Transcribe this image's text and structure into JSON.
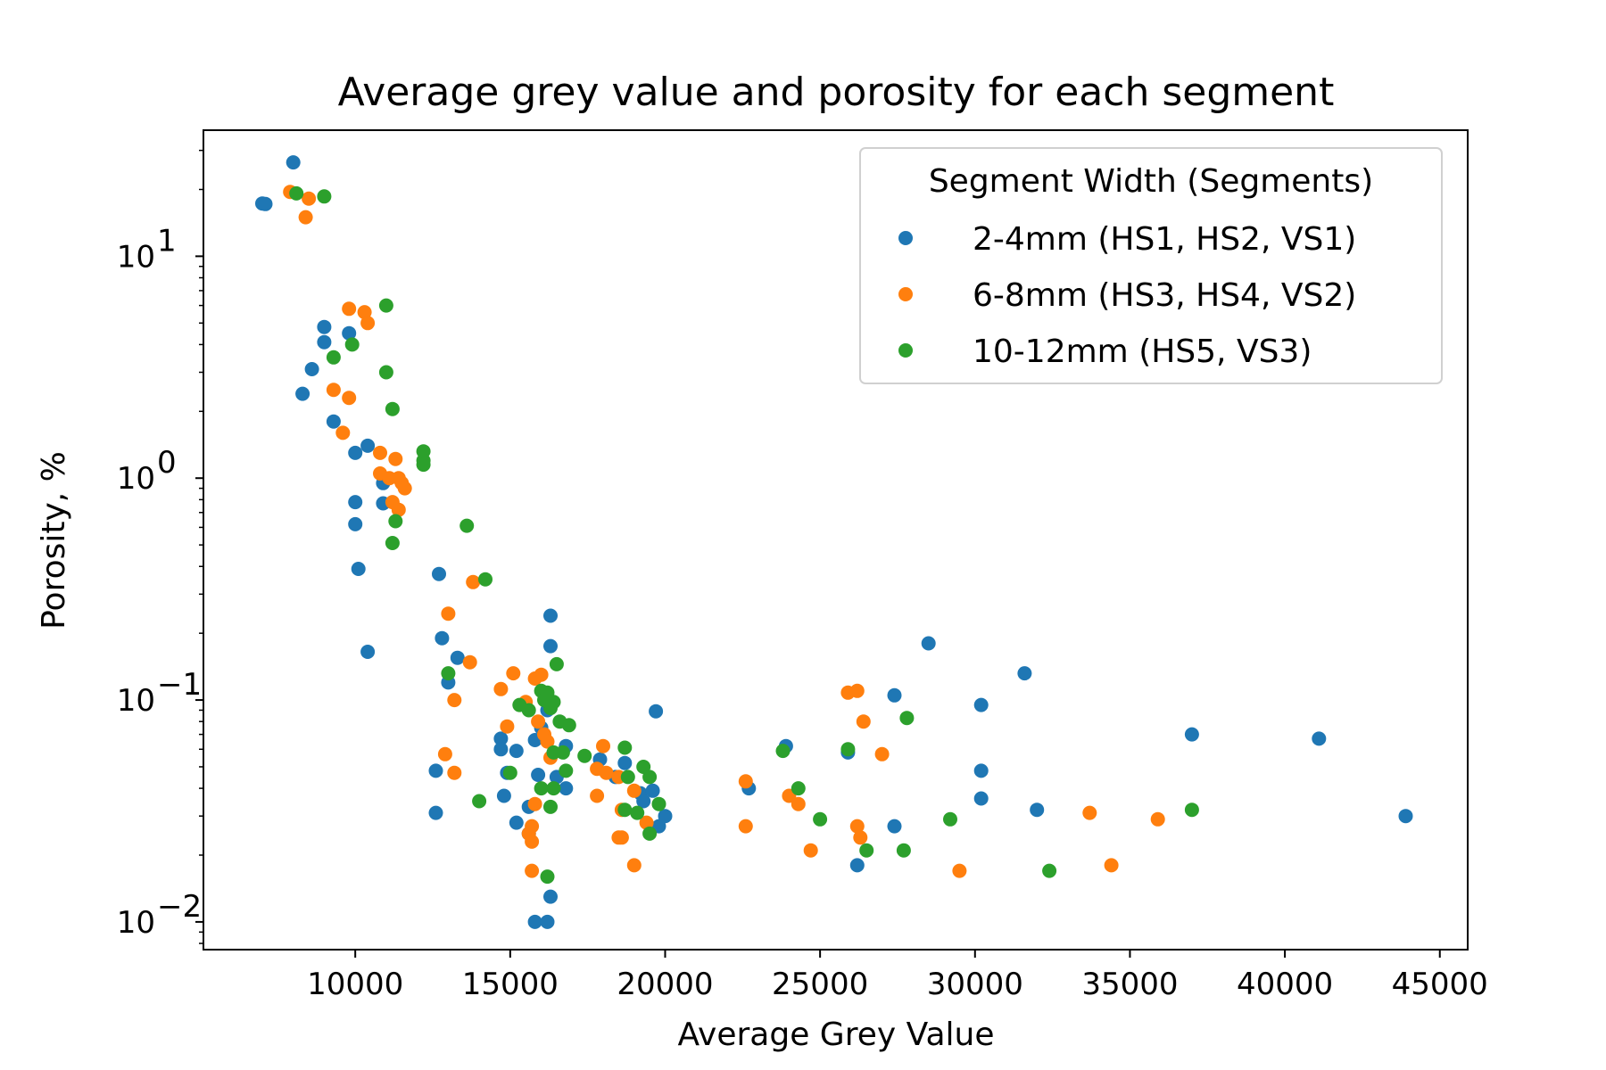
{
  "chart_data": {
    "type": "scatter",
    "title": "Average grey value and porosity for each segment",
    "xlabel": "Average Grey Value",
    "ylabel": "Porosity, %",
    "xlim": [
      5100,
      45900
    ],
    "ylim": [
      0.0075,
      37
    ],
    "yscale": "log",
    "x_ticks": [
      10000,
      15000,
      20000,
      25000,
      30000,
      35000,
      40000,
      45000
    ],
    "y_ticks": [
      {
        "value": 10,
        "base": "10",
        "exp": "1"
      },
      {
        "value": 1,
        "base": "10",
        "exp": "0"
      },
      {
        "value": 0.1,
        "base": "10",
        "exp": "−1"
      },
      {
        "value": 0.01,
        "base": "10",
        "exp": "−2"
      }
    ],
    "grid": false,
    "legend": {
      "title": "Segment Width (Segments)",
      "placement": "top-right"
    },
    "series": [
      {
        "name": "2-4mm (HS1, HS2, VS1)",
        "color": "#1f77b4",
        "points": [
          [
            7000,
            17.3
          ],
          [
            7100,
            17.2
          ],
          [
            8000,
            26.5
          ],
          [
            8300,
            2.4
          ],
          [
            8600,
            3.1
          ],
          [
            9000,
            4.8
          ],
          [
            9000,
            4.1
          ],
          [
            9300,
            1.8
          ],
          [
            9800,
            4.5
          ],
          [
            10000,
            1.3
          ],
          [
            10000,
            0.78
          ],
          [
            10000,
            0.62
          ],
          [
            10100,
            0.39
          ],
          [
            10400,
            1.4
          ],
          [
            10400,
            0.165
          ],
          [
            10900,
            0.95
          ],
          [
            10900,
            0.77
          ],
          [
            12700,
            0.37
          ],
          [
            12800,
            0.19
          ],
          [
            13000,
            0.12
          ],
          [
            13300,
            0.155
          ],
          [
            12600,
            0.048
          ],
          [
            12600,
            0.031
          ],
          [
            14700,
            0.067
          ],
          [
            14700,
            0.06
          ],
          [
            14800,
            0.037
          ],
          [
            14900,
            0.047
          ],
          [
            15200,
            0.059
          ],
          [
            15200,
            0.028
          ],
          [
            15600,
            0.033
          ],
          [
            15600,
            0.025
          ],
          [
            15800,
            0.066
          ],
          [
            15900,
            0.046
          ],
          [
            16000,
            0.075
          ],
          [
            16200,
            0.09
          ],
          [
            16300,
            0.24
          ],
          [
            16300,
            0.175
          ],
          [
            16500,
            0.045
          ],
          [
            16800,
            0.062
          ],
          [
            16800,
            0.04
          ],
          [
            17900,
            0.054
          ],
          [
            18400,
            0.045
          ],
          [
            18700,
            0.052
          ],
          [
            19200,
            0.038
          ],
          [
            19300,
            0.035
          ],
          [
            19600,
            0.039
          ],
          [
            19700,
            0.089
          ],
          [
            19800,
            0.027
          ],
          [
            20000,
            0.03
          ],
          [
            15800,
            0.01
          ],
          [
            16200,
            0.01
          ],
          [
            16300,
            0.013
          ],
          [
            22700,
            0.04
          ],
          [
            23900,
            0.062
          ],
          [
            25900,
            0.058
          ],
          [
            26200,
            0.018
          ],
          [
            27400,
            0.105
          ],
          [
            27400,
            0.027
          ],
          [
            28500,
            0.18
          ],
          [
            30200,
            0.095
          ],
          [
            30200,
            0.048
          ],
          [
            30200,
            0.036
          ],
          [
            31600,
            0.132
          ],
          [
            32000,
            0.032
          ],
          [
            37000,
            0.07
          ],
          [
            41100,
            0.067
          ],
          [
            43900,
            0.03
          ]
        ]
      },
      {
        "name": "6-8mm (HS3, HS4, VS2)",
        "color": "#ff7f0e",
        "points": [
          [
            7900,
            19.5
          ],
          [
            8400,
            15.0
          ],
          [
            8500,
            18.2
          ],
          [
            9300,
            2.5
          ],
          [
            9600,
            1.6
          ],
          [
            9800,
            2.3
          ],
          [
            9800,
            5.8
          ],
          [
            10300,
            5.6
          ],
          [
            10400,
            5.0
          ],
          [
            10800,
            1.3
          ],
          [
            10800,
            1.05
          ],
          [
            11100,
            1.0
          ],
          [
            11200,
            0.78
          ],
          [
            11300,
            1.22
          ],
          [
            11400,
            1.0
          ],
          [
            11400,
            0.72
          ],
          [
            11500,
            0.95
          ],
          [
            11600,
            0.9
          ],
          [
            13000,
            0.245
          ],
          [
            13800,
            0.34
          ],
          [
            13700,
            0.148
          ],
          [
            13200,
            0.1
          ],
          [
            12900,
            0.057
          ],
          [
            13200,
            0.047
          ],
          [
            14700,
            0.112
          ],
          [
            14900,
            0.076
          ],
          [
            15100,
            0.132
          ],
          [
            15500,
            0.098
          ],
          [
            15800,
            0.125
          ],
          [
            16000,
            0.13
          ],
          [
            15900,
            0.08
          ],
          [
            16100,
            0.07
          ],
          [
            16200,
            0.065
          ],
          [
            16300,
            0.055
          ],
          [
            15600,
            0.025
          ],
          [
            15700,
            0.027
          ],
          [
            15700,
            0.023
          ],
          [
            15700,
            0.017
          ],
          [
            15800,
            0.034
          ],
          [
            17800,
            0.049
          ],
          [
            18000,
            0.062
          ],
          [
            18100,
            0.047
          ],
          [
            17800,
            0.037
          ],
          [
            18500,
            0.045
          ],
          [
            18500,
            0.024
          ],
          [
            18600,
            0.024
          ],
          [
            18600,
            0.032
          ],
          [
            19000,
            0.039
          ],
          [
            19000,
            0.018
          ],
          [
            19400,
            0.028
          ],
          [
            22600,
            0.043
          ],
          [
            22600,
            0.027
          ],
          [
            24000,
            0.037
          ],
          [
            24300,
            0.034
          ],
          [
            24700,
            0.021
          ],
          [
            25900,
            0.108
          ],
          [
            26200,
            0.11
          ],
          [
            26200,
            0.027
          ],
          [
            26300,
            0.024
          ],
          [
            26400,
            0.08
          ],
          [
            27000,
            0.057
          ],
          [
            29500,
            0.017
          ],
          [
            33700,
            0.031
          ],
          [
            34400,
            0.018
          ],
          [
            35900,
            0.029
          ]
        ]
      },
      {
        "name": "10-12mm (HS5, VS3)",
        "color": "#2ca02c",
        "points": [
          [
            8100,
            19.2
          ],
          [
            9000,
            18.6
          ],
          [
            9300,
            3.5
          ],
          [
            9900,
            4.0
          ],
          [
            11000,
            6.0
          ],
          [
            11000,
            3.0
          ],
          [
            11200,
            2.05
          ],
          [
            11300,
            0.64
          ],
          [
            11200,
            0.51
          ],
          [
            12200,
            1.32
          ],
          [
            12200,
            1.2
          ],
          [
            12200,
            1.15
          ],
          [
            13600,
            0.61
          ],
          [
            14200,
            0.35
          ],
          [
            13000,
            0.132
          ],
          [
            14000,
            0.035
          ],
          [
            15000,
            0.047
          ],
          [
            15300,
            0.095
          ],
          [
            15600,
            0.09
          ],
          [
            16000,
            0.11
          ],
          [
            16100,
            0.1
          ],
          [
            16200,
            0.108
          ],
          [
            16300,
            0.092
          ],
          [
            16400,
            0.098
          ],
          [
            16500,
            0.145
          ],
          [
            16600,
            0.08
          ],
          [
            16900,
            0.077
          ],
          [
            16400,
            0.058
          ],
          [
            16700,
            0.058
          ],
          [
            16800,
            0.048
          ],
          [
            16000,
            0.04
          ],
          [
            16300,
            0.033
          ],
          [
            16400,
            0.04
          ],
          [
            16200,
            0.016
          ],
          [
            17400,
            0.056
          ],
          [
            18700,
            0.061
          ],
          [
            18800,
            0.045
          ],
          [
            18700,
            0.032
          ],
          [
            19100,
            0.031
          ],
          [
            19300,
            0.05
          ],
          [
            19500,
            0.045
          ],
          [
            19500,
            0.025
          ],
          [
            19800,
            0.034
          ],
          [
            23800,
            0.059
          ],
          [
            24300,
            0.04
          ],
          [
            25000,
            0.029
          ],
          [
            25900,
            0.06
          ],
          [
            26500,
            0.021
          ],
          [
            27700,
            0.021
          ],
          [
            27800,
            0.083
          ],
          [
            29200,
            0.029
          ],
          [
            32400,
            0.017
          ],
          [
            37000,
            0.032
          ]
        ]
      }
    ]
  }
}
